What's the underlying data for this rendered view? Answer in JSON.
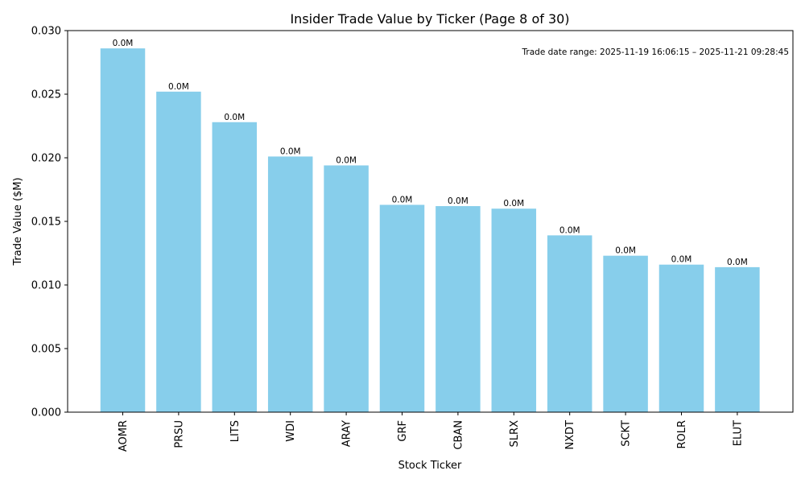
{
  "chart_data": {
    "type": "bar",
    "title": "Insider Trade Value by Ticker (Page 8 of 30)",
    "xlabel": "Stock Ticker",
    "ylabel": "Trade Value ($M)",
    "ylim": [
      0,
      0.03
    ],
    "yticks": [
      0,
      0.005,
      0.01,
      0.015,
      0.02,
      0.025,
      0.03
    ],
    "ytick_labels": [
      "0.000",
      "0.005",
      "0.010",
      "0.015",
      "0.020",
      "0.025",
      "0.030"
    ],
    "categories": [
      "AOMR",
      "PRSU",
      "LITS",
      "WDI",
      "ARAY",
      "GRF",
      "CBAN",
      "SLRX",
      "NXDT",
      "SCKT",
      "ROLR",
      "ELUT"
    ],
    "values": [
      0.0286,
      0.0252,
      0.0228,
      0.0201,
      0.0194,
      0.0163,
      0.0162,
      0.016,
      0.0139,
      0.0123,
      0.0116,
      0.0114
    ],
    "data_labels": [
      "0.0M",
      "0.0M",
      "0.0M",
      "0.0M",
      "0.0M",
      "0.0M",
      "0.0M",
      "0.0M",
      "0.0M",
      "0.0M",
      "0.0M",
      "0.0M"
    ],
    "bar_color": "#87ceeb",
    "annotation": "Trade date range: 2025-11-19 16:06:15 – 2025-11-21 09:28:45",
    "grid": false
  }
}
